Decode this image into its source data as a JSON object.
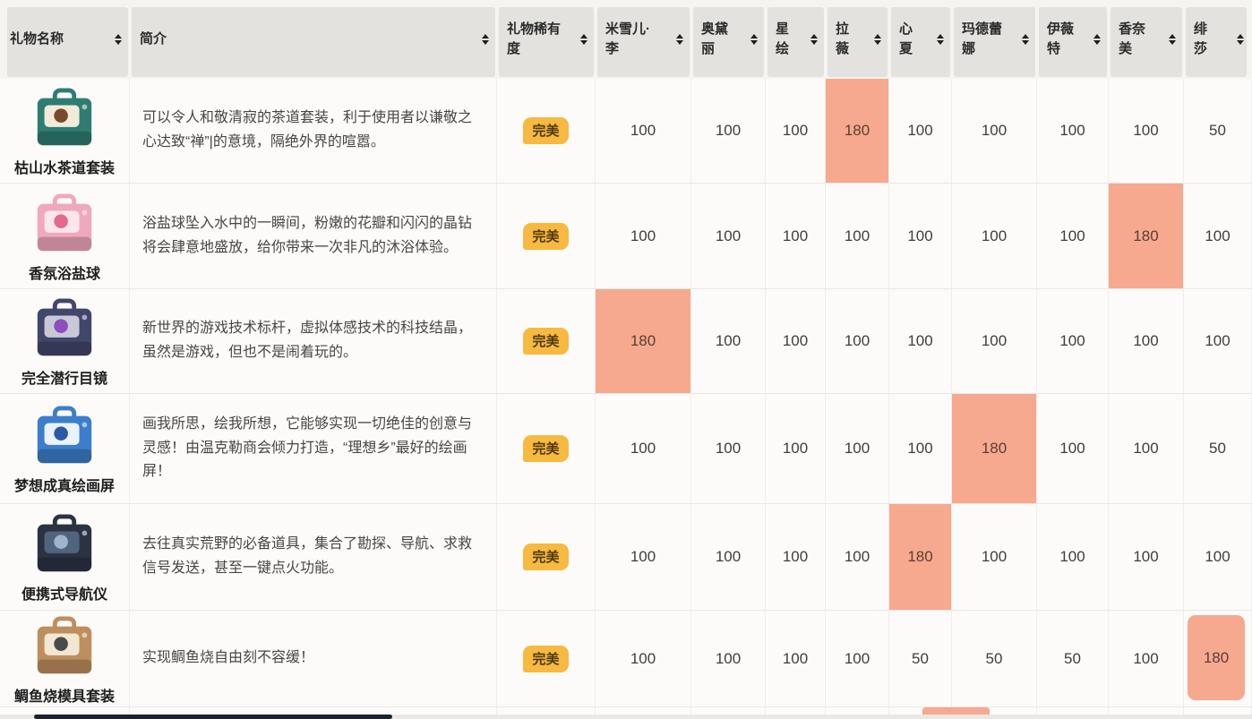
{
  "table": {
    "columns": [
      {
        "label": "礼物名称"
      },
      {
        "label": "简介"
      },
      {
        "label": "礼物稀有度"
      },
      {
        "label": "米雪儿·李"
      },
      {
        "label": "奥黛丽"
      },
      {
        "label": "星绘"
      },
      {
        "label": "拉薇"
      },
      {
        "label": "心夏"
      },
      {
        "label": "玛德蕾娜"
      },
      {
        "label": "伊薇特"
      },
      {
        "label": "香奈美"
      },
      {
        "label": "绯莎"
      }
    ],
    "rows": [
      {
        "name": "枯山水茶道套装",
        "desc": "可以令人和敬清寂的茶道套装，利于使用者以谦敬之心达致“禅”|的意境，隔绝外界的喧嚣。",
        "rarity": "完美",
        "values": [
          100,
          100,
          100,
          180,
          100,
          100,
          100,
          100,
          50
        ],
        "highlight_index": 3,
        "icon": {
          "body": "#2f7d72",
          "label": "#f3ebd9",
          "accent": "#7a4a2b"
        }
      },
      {
        "name": "香氛浴盐球",
        "desc": "浴盐球坠入水中的一瞬间，粉嫩的花瓣和闪闪的晶钻将会肆意地盛放，给你带来一次非凡的沐浴体验。",
        "rarity": "完美",
        "values": [
          100,
          100,
          100,
          100,
          100,
          100,
          100,
          180,
          100
        ],
        "highlight_index": 7,
        "icon": {
          "body": "#f0a8bc",
          "label": "#fbe6ee",
          "accent": "#e26a8d"
        }
      },
      {
        "name": "完全潜行目镜",
        "desc": "新世界的游戏技术标杆，虚拟体感技术的科技结晶，虽然是游戏，但也不是闹着玩的。",
        "rarity": "完美",
        "values": [
          180,
          100,
          100,
          100,
          100,
          100,
          100,
          100,
          100
        ],
        "highlight_index": 0,
        "icon": {
          "body": "#41466b",
          "label": "#c9c9d6",
          "accent": "#8c4fc0"
        }
      },
      {
        "name": "梦想成真绘画屏",
        "desc": "画我所思，绘我所想，它能够实现一切绝佳的创意与灵感！由温克勒商会倾力打造，“理想乡”最好的绘画屏！",
        "rarity": "完美",
        "values": [
          100,
          100,
          100,
          100,
          100,
          180,
          100,
          100,
          50
        ],
        "highlight_index": 5,
        "icon": {
          "body": "#3d7ecc",
          "label": "#eaf2fb",
          "accent": "#2b59a8"
        }
      },
      {
        "name": "便携式导航仪",
        "desc": "去往真实荒野的必备道具，集合了勘探、导航、求救信号发送，甚至一键点火功能。",
        "rarity": "完美",
        "values": [
          100,
          100,
          100,
          100,
          180,
          100,
          100,
          100,
          100
        ],
        "highlight_index": 4,
        "icon": {
          "body": "#2b3343",
          "label": "#51647e",
          "accent": "#9fb4cc"
        }
      },
      {
        "name": "鲷鱼烧模具套装",
        "desc": "实现鲷鱼烧自由刻不容缓！",
        "rarity": "完美",
        "values": [
          100,
          100,
          100,
          100,
          50,
          50,
          50,
          100,
          180
        ],
        "highlight_index": 8,
        "icon": {
          "body": "#be8e5e",
          "label": "#f2e7d2",
          "accent": "#4a4a4a"
        }
      }
    ]
  },
  "colors": {
    "highlight_bg": "#f6a98f",
    "highlight_text": "#5c3d32",
    "badge_bg": "#f7b93f",
    "badge_text": "#4e3a10",
    "header_bg": "#e3e2df",
    "cell_bg": "#fcfbf9",
    "scrollbar_thumb": "#1c2130"
  }
}
